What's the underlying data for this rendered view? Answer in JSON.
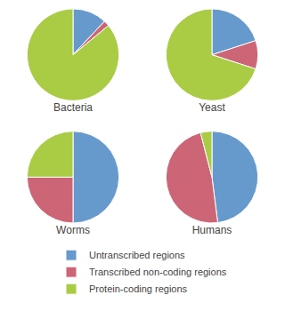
{
  "chart_data": [
    {
      "type": "pie",
      "title": "Bacteria",
      "categories": [
        "Untranscribed regions",
        "Transcribed non-coding regions",
        "Protein-coding regions"
      ],
      "values": [
        12,
        2,
        86
      ],
      "colors": [
        "#6699cc",
        "#cc6677",
        "#aacc44"
      ],
      "legend": "bottom"
    },
    {
      "type": "pie",
      "title": "Yeast",
      "categories": [
        "Untranscribed regions",
        "Transcribed non-coding regions",
        "Protein-coding regions"
      ],
      "values": [
        20,
        10,
        70
      ],
      "colors": [
        "#6699cc",
        "#cc6677",
        "#aacc44"
      ],
      "legend": "bottom"
    },
    {
      "type": "pie",
      "title": "Worms",
      "categories": [
        "Untranscribed regions",
        "Transcribed non-coding regions",
        "Protein-coding regions"
      ],
      "values": [
        50,
        25,
        25
      ],
      "colors": [
        "#6699cc",
        "#cc6677",
        "#aacc44"
      ],
      "legend": "bottom"
    },
    {
      "type": "pie",
      "title": "Humans",
      "categories": [
        "Untranscribed regions",
        "Transcribed non-coding regions",
        "Protein-coding regions"
      ],
      "values": [
        48,
        48,
        4
      ],
      "colors": [
        "#6699cc",
        "#cc6677",
        "#aacc44"
      ],
      "legend": "bottom"
    }
  ]
}
